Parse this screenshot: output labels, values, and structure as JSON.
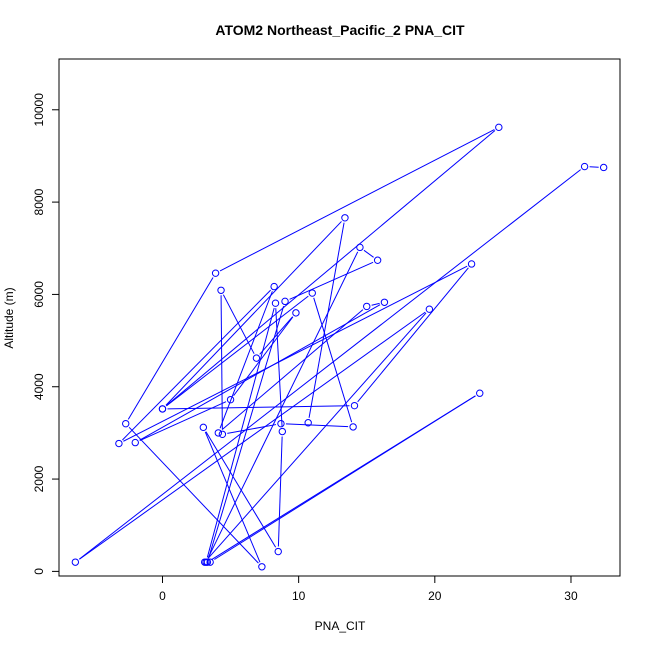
{
  "chart_data": {
    "type": "line",
    "title": "ATOM2 Northeast_Pacific_2 PNA_CIT",
    "xlabel": "PNA_CIT",
    "ylabel": "Altitude (m)",
    "xlim": [
      -7.6,
      33.6
    ],
    "ylim": [
      -100,
      11100
    ],
    "xticks": [
      0,
      10,
      20,
      30
    ],
    "yticks": [
      0,
      2000,
      4000,
      6000,
      8000,
      10000
    ],
    "grid": false,
    "line_color": "#0000ff",
    "series": [
      {
        "x": [
          32.4,
          31.0,
          -6.4,
          19.6,
          3.1,
          3.5,
          23.3,
          3.3,
          9.0,
          15.8,
          14.5,
          3.2,
          8.3,
          8.8,
          8.5,
          3.0,
          7.3,
          -2.7,
          3.9,
          24.7,
          0.0,
          11.0,
          14.0,
          8.7,
          4.4,
          4.3,
          6.9,
          9.8,
          5.0,
          -2.0,
          16.3,
          15.0,
          4.1,
          8.2,
          -3.2,
          22.7,
          14.1,
          0.0,
          13.4,
          10.7
        ],
        "y": [
          8750,
          8770,
          200,
          5680,
          200,
          200,
          3860,
          200,
          5850,
          6740,
          7020,
          200,
          5810,
          3030,
          430,
          3120,
          100,
          3200,
          6460,
          9620,
          3520,
          6030,
          3130,
          3200,
          2970,
          6090,
          4620,
          5600,
          3720,
          2790,
          5830,
          5740,
          3000,
          6170,
          2770,
          6660,
          3590,
          3520,
          7660,
          3220
        ]
      }
    ]
  }
}
